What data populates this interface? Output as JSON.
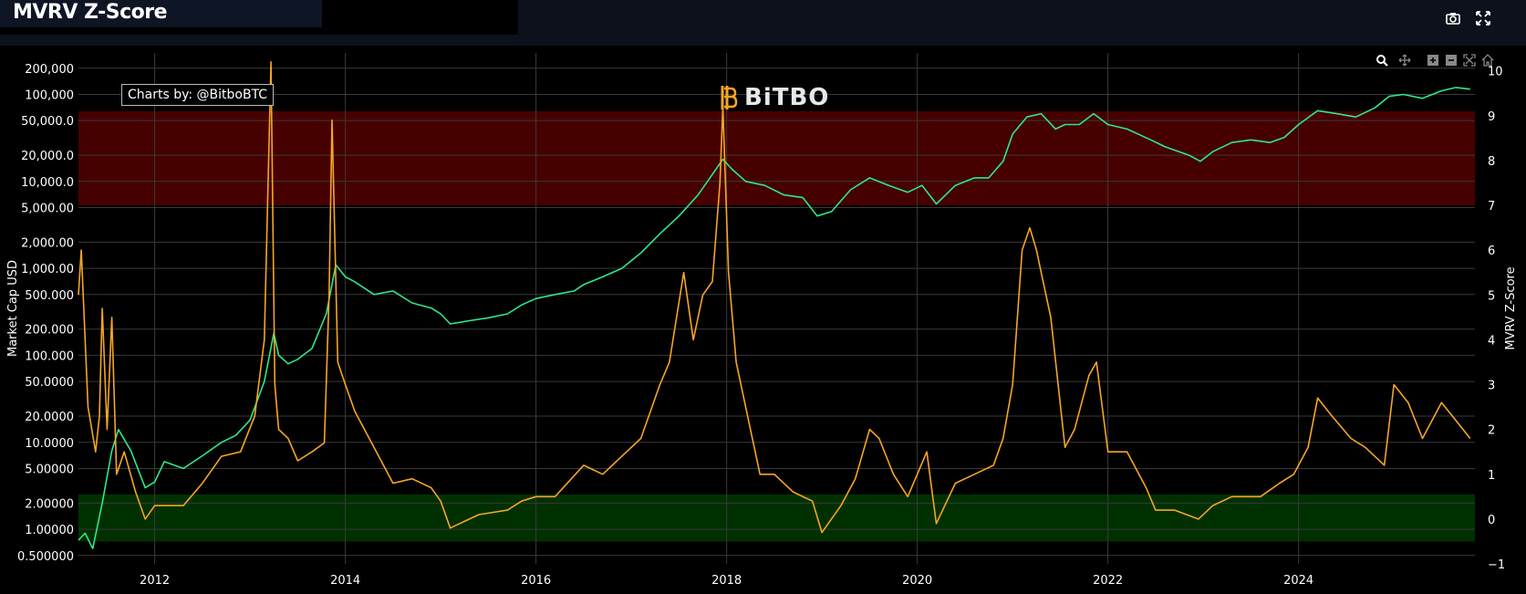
{
  "window": {
    "title": "MVRV Z-Score",
    "icons": [
      "camera-icon",
      "fullscreen-icon"
    ]
  },
  "modebar": {
    "icons": [
      "zoom-icon",
      "pan-icon",
      "zoom-in-icon",
      "zoom-out-icon",
      "autoscale-icon",
      "home-icon"
    ]
  },
  "annotations": {
    "credit": "Charts by: @BitboBTC",
    "logo": "BiTBO"
  },
  "colors": {
    "background": "#000000",
    "market_cap_line": "#2ee88a",
    "zscore_line": "#f5a623",
    "red_zone": "#4a0000",
    "green_zone": "#003300",
    "grid": "#3a3a3a"
  },
  "chart_data": {
    "type": "line",
    "title": "MVRV Z-Score",
    "ylabel_left": "Market Cap USD",
    "ylabel_right": "MVRV Z-Score",
    "y_left_scale": "log",
    "y_left_range": [
      0.4,
      300000
    ],
    "y_right_range": [
      -1,
      10.4
    ],
    "x_range": [
      2011.2,
      2025.85
    ],
    "x_ticks": [
      "2012",
      "2014",
      "2016",
      "2018",
      "2020",
      "2022",
      "2024"
    ],
    "y_left_ticks": [
      "200,000",
      "100,000",
      "50,000.0",
      "20,000.0",
      "10,000.0",
      "5,000.00",
      "2,000.00",
      "1,000.00",
      "500.000",
      "200.000",
      "100.000",
      "50.0000",
      "20.0000",
      "10.0000",
      "5.00000",
      "2.00000",
      "1.00000",
      "0.500000"
    ],
    "y_left_tick_values": [
      200000,
      100000,
      50000,
      20000,
      10000,
      5000,
      2000,
      1000,
      500,
      200,
      100,
      50,
      20,
      10,
      5,
      2,
      1,
      0.5
    ],
    "y_right_ticks": [
      "10",
      "9",
      "8",
      "7",
      "6",
      "5",
      "4",
      "3",
      "2",
      "1",
      "0",
      "−1"
    ],
    "y_right_tick_values": [
      10,
      9,
      8,
      7,
      6,
      5,
      4,
      3,
      2,
      1,
      0,
      -1
    ],
    "zones": [
      {
        "name": "red",
        "from": 7.0,
        "to": 9.1
      },
      {
        "name": "green",
        "from": -0.5,
        "to": 0.55
      }
    ],
    "grid": true,
    "series": [
      {
        "axis": "left",
        "color": "#2ee88a",
        "x": [
          2011.2,
          2011.27,
          2011.35,
          2011.45,
          2011.55,
          2011.62,
          2011.75,
          2011.9,
          2012.0,
          2012.1,
          2012.3,
          2012.5,
          2012.7,
          2012.85,
          2013.0,
          2013.15,
          2013.25,
          2013.3,
          2013.4,
          2013.5,
          2013.65,
          2013.8,
          2013.9,
          2014.0,
          2014.1,
          2014.3,
          2014.5,
          2014.7,
          2014.9,
          2015.0,
          2015.1,
          2015.3,
          2015.5,
          2015.7,
          2015.85,
          2016.0,
          2016.2,
          2016.4,
          2016.5,
          2016.7,
          2016.9,
          2017.1,
          2017.3,
          2017.5,
          2017.7,
          2017.85,
          2017.96,
          2018.05,
          2018.2,
          2018.4,
          2018.6,
          2018.8,
          2018.95,
          2019.1,
          2019.3,
          2019.5,
          2019.7,
          2019.9,
          2020.05,
          2020.2,
          2020.4,
          2020.6,
          2020.75,
          2020.9,
          2021.0,
          2021.15,
          2021.3,
          2021.45,
          2021.55,
          2021.7,
          2021.85,
          2022.0,
          2022.2,
          2022.45,
          2022.6,
          2022.85,
          2022.97,
          2023.1,
          2023.3,
          2023.5,
          2023.7,
          2023.85,
          2024.0,
          2024.2,
          2024.4,
          2024.6,
          2024.8,
          2024.95,
          2025.1,
          2025.3,
          2025.5,
          2025.65,
          2025.8
        ],
        "values": [
          0.75,
          0.9,
          0.6,
          2.0,
          8.0,
          14.0,
          8.0,
          3.0,
          3.5,
          6.0,
          5.0,
          7.0,
          10.0,
          12.0,
          18.0,
          50.0,
          180.0,
          100.0,
          80.0,
          90.0,
          120.0,
          300.0,
          1100.0,
          800.0,
          700.0,
          500.0,
          550.0,
          400.0,
          350.0,
          300.0,
          230.0,
          250.0,
          270.0,
          300.0,
          380.0,
          450.0,
          500.0,
          550.0,
          650.0,
          800.0,
          1000.0,
          1500.0,
          2500.0,
          4000.0,
          7000.0,
          12000.0,
          18000.0,
          14000.0,
          10000.0,
          9000.0,
          7000.0,
          6500.0,
          4000.0,
          4500.0,
          8000.0,
          11000.0,
          9000.0,
          7500.0,
          9000.0,
          5500.0,
          9000.0,
          11000.0,
          11000.0,
          17000.0,
          35000.0,
          55000.0,
          60000.0,
          40000.0,
          45000.0,
          45000.0,
          60000.0,
          45000.0,
          40000.0,
          30000.0,
          25000.0,
          20000.0,
          17000.0,
          22000.0,
          28000.0,
          30000.0,
          28000.0,
          32000.0,
          45000.0,
          65000.0,
          60000.0,
          55000.0,
          70000.0,
          95000.0,
          100000.0,
          90000.0,
          110000.0,
          120000.0,
          115000.0
        ]
      },
      {
        "axis": "right",
        "color": "#f5a623",
        "x": [
          2011.2,
          2011.23,
          2011.3,
          2011.38,
          2011.42,
          2011.45,
          2011.5,
          2011.55,
          2011.6,
          2011.68,
          2011.8,
          2011.9,
          2012.0,
          2012.3,
          2012.5,
          2012.7,
          2012.9,
          2013.05,
          2013.15,
          2013.22,
          2013.26,
          2013.3,
          2013.4,
          2013.5,
          2013.65,
          2013.78,
          2013.83,
          2013.86,
          2013.92,
          2014.0,
          2014.1,
          2014.3,
          2014.5,
          2014.7,
          2014.9,
          2015.0,
          2015.1,
          2015.4,
          2015.7,
          2015.85,
          2016.0,
          2016.2,
          2016.5,
          2016.7,
          2016.9,
          2017.1,
          2017.3,
          2017.4,
          2017.55,
          2017.65,
          2017.75,
          2017.85,
          2017.93,
          2017.96,
          2018.02,
          2018.1,
          2018.2,
          2018.35,
          2018.5,
          2018.7,
          2018.9,
          2019.0,
          2019.2,
          2019.35,
          2019.5,
          2019.6,
          2019.75,
          2019.9,
          2020.1,
          2020.2,
          2020.4,
          2020.6,
          2020.8,
          2020.9,
          2021.0,
          2021.1,
          2021.18,
          2021.25,
          2021.3,
          2021.4,
          2021.55,
          2021.65,
          2021.8,
          2021.88,
          2022.0,
          2022.2,
          2022.4,
          2022.5,
          2022.7,
          2022.95,
          2023.1,
          2023.3,
          2023.6,
          2023.8,
          2023.95,
          2024.1,
          2024.2,
          2024.35,
          2024.55,
          2024.7,
          2024.9,
          2025.0,
          2025.15,
          2025.3,
          2025.5,
          2025.65,
          2025.8
        ],
        "values": [
          5.0,
          6.0,
          2.5,
          1.5,
          2.3,
          4.7,
          2.0,
          4.5,
          1.0,
          1.5,
          0.6,
          0.0,
          0.3,
          0.3,
          0.8,
          1.4,
          1.5,
          2.3,
          4.0,
          10.2,
          3.0,
          2.0,
          1.8,
          1.3,
          1.5,
          1.7,
          5.0,
          8.9,
          3.5,
          3.0,
          2.4,
          1.6,
          0.8,
          0.9,
          0.7,
          0.4,
          -0.2,
          0.1,
          0.2,
          0.4,
          0.5,
          0.5,
          1.2,
          1.0,
          1.4,
          1.8,
          3.0,
          3.5,
          5.5,
          4.0,
          5.0,
          5.3,
          7.5,
          9.2,
          5.5,
          3.5,
          2.5,
          1.0,
          1.0,
          0.6,
          0.4,
          -0.3,
          0.3,
          0.9,
          2.0,
          1.8,
          1.0,
          0.5,
          1.5,
          -0.1,
          0.8,
          1.0,
          1.2,
          1.8,
          3.0,
          6.0,
          6.5,
          6.0,
          5.5,
          4.5,
          1.6,
          2.0,
          3.2,
          3.5,
          1.5,
          1.5,
          0.7,
          0.2,
          0.2,
          0.0,
          0.3,
          0.5,
          0.5,
          0.8,
          1.0,
          1.6,
          2.7,
          2.3,
          1.8,
          1.6,
          1.2,
          3.0,
          2.6,
          1.8,
          2.6,
          2.2,
          1.8
        ]
      }
    ]
  }
}
